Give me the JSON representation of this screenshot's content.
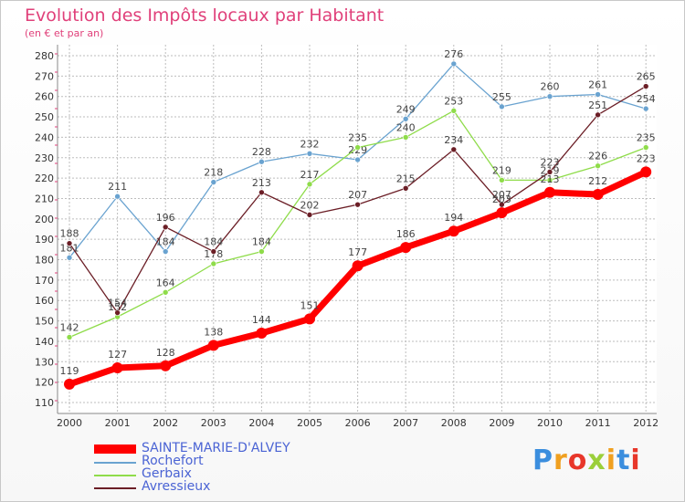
{
  "title": "Evolution des Impôts locaux par Habitant",
  "subtitle": "(en € et par an)",
  "logo_text": "Proxiti",
  "legend": [
    {
      "name": "SAINTE-MARIE-D'ALVEY",
      "color": "#ff0000"
    },
    {
      "name": "Rochefort",
      "color": "#6aa3d0"
    },
    {
      "name": "Gerbaix",
      "color": "#8fdc4a"
    },
    {
      "name": "Avressieux",
      "color": "#6b1e26"
    }
  ],
  "chart_data": {
    "type": "line",
    "title": "Evolution des Impôts locaux par Habitant",
    "subtitle": "(en € et par an)",
    "xlabel": "",
    "ylabel": "",
    "categories": [
      "2000",
      "2001",
      "2002",
      "2003",
      "2004",
      "2005",
      "2006",
      "2007",
      "2008",
      "2009",
      "2010",
      "2011",
      "2012"
    ],
    "yticks": [
      110,
      120,
      130,
      140,
      150,
      160,
      170,
      180,
      190,
      200,
      210,
      220,
      230,
      240,
      250,
      260,
      270,
      280
    ],
    "ylim": [
      110,
      280
    ],
    "grid": true,
    "legend_position": "bottom-left",
    "series": [
      {
        "name": "Rochefort",
        "color": "#6aa3d0",
        "values": [
          181,
          211,
          184,
          218,
          228,
          232,
          229,
          249,
          276,
          255,
          260,
          261,
          254
        ]
      },
      {
        "name": "Gerbaix",
        "color": "#8fdc4a",
        "values": [
          142,
          152,
          164,
          178,
          184,
          217,
          235,
          240,
          253,
          219,
          219,
          226,
          235
        ]
      },
      {
        "name": "Avressieux",
        "color": "#6b1e26",
        "values": [
          188,
          154,
          196,
          184,
          213,
          202,
          207,
          215,
          234,
          207,
          223,
          251,
          265
        ]
      },
      {
        "name": "SAINTE-MARIE-D'ALVEY",
        "color": "#ff0000",
        "values": [
          119,
          127,
          128,
          138,
          144,
          151,
          177,
          186,
          194,
          203,
          213,
          212,
          223
        ]
      }
    ]
  }
}
